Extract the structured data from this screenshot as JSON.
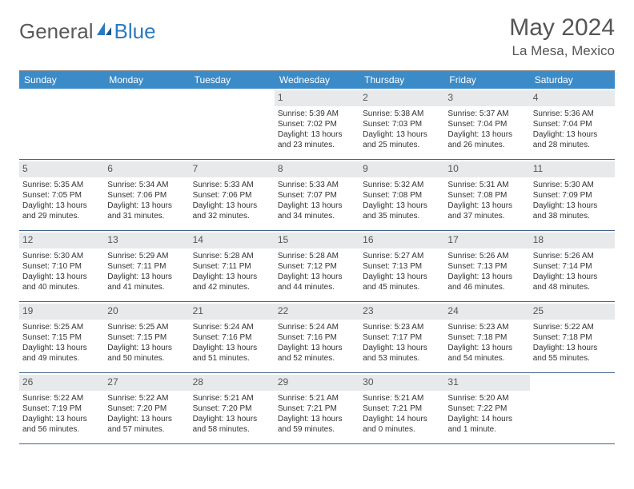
{
  "header": {
    "logo_general": "General",
    "logo_blue": "Blue",
    "month_title": "May 2024",
    "location": "La Mesa, Mexico"
  },
  "colors": {
    "header_bg": "#3b8bc9",
    "daynum_bg": "#e7e9eb",
    "week_border": "#44638a",
    "top_border": "#808080",
    "text": "#333333",
    "title_text": "#555555"
  },
  "day_names": [
    "Sunday",
    "Monday",
    "Tuesday",
    "Wednesday",
    "Thursday",
    "Friday",
    "Saturday"
  ],
  "weeks": [
    [
      {
        "blank": true
      },
      {
        "blank": true
      },
      {
        "blank": true
      },
      {
        "num": "1",
        "sunrise": "Sunrise: 5:39 AM",
        "sunset": "Sunset: 7:02 PM",
        "daylight": "Daylight: 13 hours and 23 minutes."
      },
      {
        "num": "2",
        "sunrise": "Sunrise: 5:38 AM",
        "sunset": "Sunset: 7:03 PM",
        "daylight": "Daylight: 13 hours and 25 minutes."
      },
      {
        "num": "3",
        "sunrise": "Sunrise: 5:37 AM",
        "sunset": "Sunset: 7:04 PM",
        "daylight": "Daylight: 13 hours and 26 minutes."
      },
      {
        "num": "4",
        "sunrise": "Sunrise: 5:36 AM",
        "sunset": "Sunset: 7:04 PM",
        "daylight": "Daylight: 13 hours and 28 minutes."
      }
    ],
    [
      {
        "num": "5",
        "sunrise": "Sunrise: 5:35 AM",
        "sunset": "Sunset: 7:05 PM",
        "daylight": "Daylight: 13 hours and 29 minutes."
      },
      {
        "num": "6",
        "sunrise": "Sunrise: 5:34 AM",
        "sunset": "Sunset: 7:06 PM",
        "daylight": "Daylight: 13 hours and 31 minutes."
      },
      {
        "num": "7",
        "sunrise": "Sunrise: 5:33 AM",
        "sunset": "Sunset: 7:06 PM",
        "daylight": "Daylight: 13 hours and 32 minutes."
      },
      {
        "num": "8",
        "sunrise": "Sunrise: 5:33 AM",
        "sunset": "Sunset: 7:07 PM",
        "daylight": "Daylight: 13 hours and 34 minutes."
      },
      {
        "num": "9",
        "sunrise": "Sunrise: 5:32 AM",
        "sunset": "Sunset: 7:08 PM",
        "daylight": "Daylight: 13 hours and 35 minutes."
      },
      {
        "num": "10",
        "sunrise": "Sunrise: 5:31 AM",
        "sunset": "Sunset: 7:08 PM",
        "daylight": "Daylight: 13 hours and 37 minutes."
      },
      {
        "num": "11",
        "sunrise": "Sunrise: 5:30 AM",
        "sunset": "Sunset: 7:09 PM",
        "daylight": "Daylight: 13 hours and 38 minutes."
      }
    ],
    [
      {
        "num": "12",
        "sunrise": "Sunrise: 5:30 AM",
        "sunset": "Sunset: 7:10 PM",
        "daylight": "Daylight: 13 hours and 40 minutes."
      },
      {
        "num": "13",
        "sunrise": "Sunrise: 5:29 AM",
        "sunset": "Sunset: 7:11 PM",
        "daylight": "Daylight: 13 hours and 41 minutes."
      },
      {
        "num": "14",
        "sunrise": "Sunrise: 5:28 AM",
        "sunset": "Sunset: 7:11 PM",
        "daylight": "Daylight: 13 hours and 42 minutes."
      },
      {
        "num": "15",
        "sunrise": "Sunrise: 5:28 AM",
        "sunset": "Sunset: 7:12 PM",
        "daylight": "Daylight: 13 hours and 44 minutes."
      },
      {
        "num": "16",
        "sunrise": "Sunrise: 5:27 AM",
        "sunset": "Sunset: 7:13 PM",
        "daylight": "Daylight: 13 hours and 45 minutes."
      },
      {
        "num": "17",
        "sunrise": "Sunrise: 5:26 AM",
        "sunset": "Sunset: 7:13 PM",
        "daylight": "Daylight: 13 hours and 46 minutes."
      },
      {
        "num": "18",
        "sunrise": "Sunrise: 5:26 AM",
        "sunset": "Sunset: 7:14 PM",
        "daylight": "Daylight: 13 hours and 48 minutes."
      }
    ],
    [
      {
        "num": "19",
        "sunrise": "Sunrise: 5:25 AM",
        "sunset": "Sunset: 7:15 PM",
        "daylight": "Daylight: 13 hours and 49 minutes."
      },
      {
        "num": "20",
        "sunrise": "Sunrise: 5:25 AM",
        "sunset": "Sunset: 7:15 PM",
        "daylight": "Daylight: 13 hours and 50 minutes."
      },
      {
        "num": "21",
        "sunrise": "Sunrise: 5:24 AM",
        "sunset": "Sunset: 7:16 PM",
        "daylight": "Daylight: 13 hours and 51 minutes."
      },
      {
        "num": "22",
        "sunrise": "Sunrise: 5:24 AM",
        "sunset": "Sunset: 7:16 PM",
        "daylight": "Daylight: 13 hours and 52 minutes."
      },
      {
        "num": "23",
        "sunrise": "Sunrise: 5:23 AM",
        "sunset": "Sunset: 7:17 PM",
        "daylight": "Daylight: 13 hours and 53 minutes."
      },
      {
        "num": "24",
        "sunrise": "Sunrise: 5:23 AM",
        "sunset": "Sunset: 7:18 PM",
        "daylight": "Daylight: 13 hours and 54 minutes."
      },
      {
        "num": "25",
        "sunrise": "Sunrise: 5:22 AM",
        "sunset": "Sunset: 7:18 PM",
        "daylight": "Daylight: 13 hours and 55 minutes."
      }
    ],
    [
      {
        "num": "26",
        "sunrise": "Sunrise: 5:22 AM",
        "sunset": "Sunset: 7:19 PM",
        "daylight": "Daylight: 13 hours and 56 minutes."
      },
      {
        "num": "27",
        "sunrise": "Sunrise: 5:22 AM",
        "sunset": "Sunset: 7:20 PM",
        "daylight": "Daylight: 13 hours and 57 minutes."
      },
      {
        "num": "28",
        "sunrise": "Sunrise: 5:21 AM",
        "sunset": "Sunset: 7:20 PM",
        "daylight": "Daylight: 13 hours and 58 minutes."
      },
      {
        "num": "29",
        "sunrise": "Sunrise: 5:21 AM",
        "sunset": "Sunset: 7:21 PM",
        "daylight": "Daylight: 13 hours and 59 minutes."
      },
      {
        "num": "30",
        "sunrise": "Sunrise: 5:21 AM",
        "sunset": "Sunset: 7:21 PM",
        "daylight": "Daylight: 14 hours and 0 minutes."
      },
      {
        "num": "31",
        "sunrise": "Sunrise: 5:20 AM",
        "sunset": "Sunset: 7:22 PM",
        "daylight": "Daylight: 14 hours and 1 minute."
      },
      {
        "blank": true
      }
    ]
  ]
}
